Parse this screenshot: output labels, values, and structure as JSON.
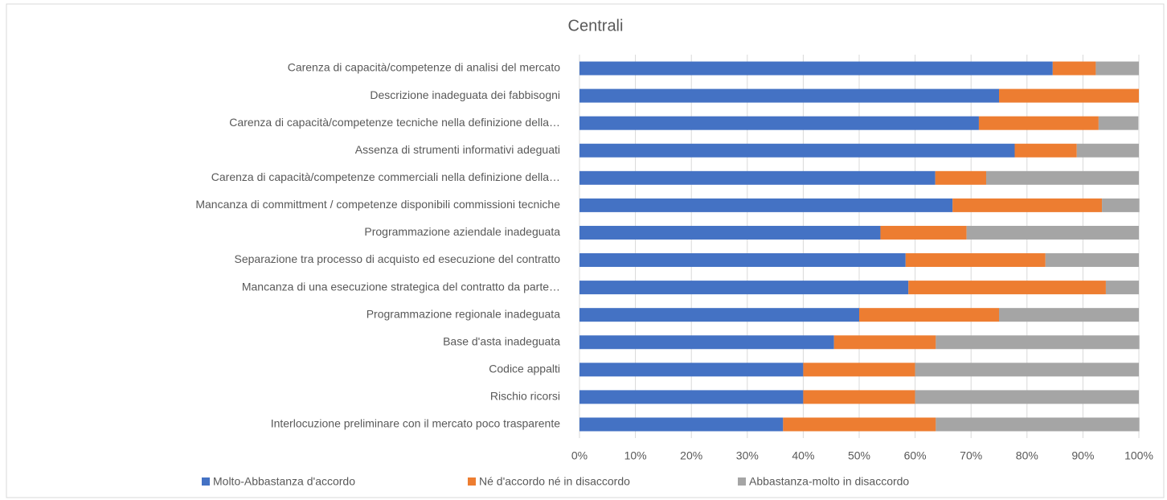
{
  "chart_data": {
    "type": "stacked_bar_horizontal",
    "title": "Centrali",
    "categories": [
      "Carenza di capacità/competenze di analisi del mercato",
      "Descrizione inadeguata dei fabbisogni",
      "Carenza di capacità/competenze tecniche nella definizione della…",
      "Assenza di strumenti informativi adeguati",
      "Carenza di capacità/competenze commerciali nella definizione della…",
      "Mancanza di committment / competenze disponibili commissioni tecniche",
      "Programmazione aziendale inadeguata",
      "Separazione tra processo di acquisto ed esecuzione del contratto",
      "Mancanza di una esecuzione strategica del contratto da parte…",
      "Programmazione regionale inadeguata",
      "Base d'asta inadeguata",
      "Codice appalti",
      "Rischio ricorsi",
      "Interlocuzione preliminare con il mercato poco trasparente"
    ],
    "series": [
      {
        "name": "Molto-Abbastanza d'accordo",
        "color": "#4472c4",
        "values": [
          84.6,
          75,
          71.4,
          77.8,
          63.6,
          66.7,
          53.8,
          58.3,
          58.8,
          50,
          45.5,
          40,
          40,
          36.4
        ]
      },
      {
        "name": "Né d'accordo né in disaccordo",
        "color": "#ed7d31",
        "values": [
          7.7,
          25,
          21.4,
          11.1,
          9.1,
          26.7,
          15.4,
          25,
          35.3,
          25,
          18.2,
          20,
          20,
          27.3
        ]
      },
      {
        "name": "Abbastanza-molto in disaccordo",
        "color": "#a5a5a5",
        "values": [
          7.7,
          0,
          7.1,
          11.1,
          27.3,
          6.7,
          30.8,
          16.7,
          5.9,
          25,
          36.4,
          40,
          40,
          36.4
        ]
      }
    ],
    "xlim": [
      0,
      100
    ],
    "xticks": [
      {
        "value": 0,
        "label": "0%"
      },
      {
        "value": 10,
        "label": "10%"
      },
      {
        "value": 20,
        "label": "20%"
      },
      {
        "value": 30,
        "label": "30%"
      },
      {
        "value": 40,
        "label": "40%"
      },
      {
        "value": 50,
        "label": "50%"
      },
      {
        "value": 60,
        "label": "60%"
      },
      {
        "value": 70,
        "label": "70%"
      },
      {
        "value": 80,
        "label": "80%"
      },
      {
        "value": 90,
        "label": "90%"
      },
      {
        "value": 100,
        "label": "100%"
      }
    ],
    "grid": true,
    "legend": "bottom"
  }
}
